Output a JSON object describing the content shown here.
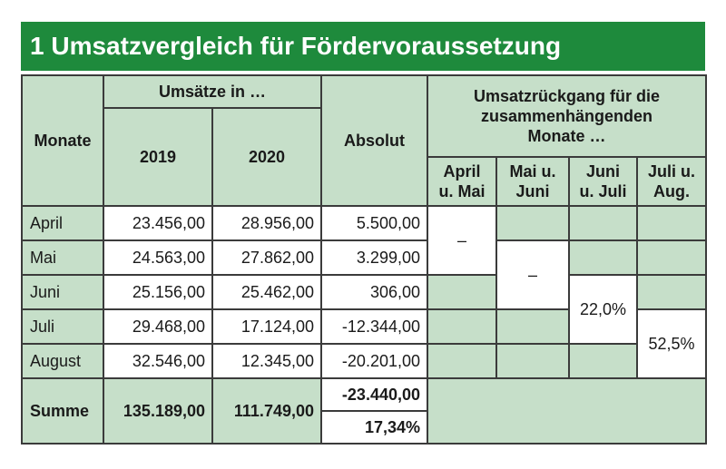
{
  "title": "1 Umsatzvergleich für Fördervoraussetzung",
  "header": {
    "monate": "Monate",
    "umsaetze_in": "Umsätze in …",
    "year_2019": "2019",
    "year_2020": "2020",
    "absolut": "Absolut",
    "rueckgang_line1": "Umsatzrückgang für die",
    "rueckgang_line2": "zusammenhängenden",
    "rueckgang_line3": "Monate …",
    "periods": [
      {
        "line1": "April",
        "line2": "u. Mai"
      },
      {
        "line1": "Mai u.",
        "line2": "Juni"
      },
      {
        "line1": "Juni",
        "line2": "u. Juli"
      },
      {
        "line1": "Juli u.",
        "line2": "Aug."
      }
    ]
  },
  "rows": [
    {
      "month": "April",
      "v2019": "23.456,00",
      "v2020": "28.956,00",
      "absolut": "5.500,00"
    },
    {
      "month": "Mai",
      "v2019": "24.563,00",
      "v2020": "27.862,00",
      "absolut": "3.299,00"
    },
    {
      "month": "Juni",
      "v2019": "25.156,00",
      "v2020": "25.462,00",
      "absolut": "306,00"
    },
    {
      "month": "Juli",
      "v2019": "29.468,00",
      "v2020": "17.124,00",
      "absolut": "-12.344,00"
    },
    {
      "month": "August",
      "v2019": "32.546,00",
      "v2020": "12.345,00",
      "absolut": "-20.201,00"
    }
  ],
  "results": {
    "april_mai": "–",
    "mai_juni": "–",
    "juni_juli": "22,0%",
    "juli_aug": "52,5%"
  },
  "summe": {
    "label": "Summe",
    "v2019": "135.189,00",
    "v2020": "111.749,00",
    "absolut": "-23.440,00",
    "percent": "17,34%"
  },
  "colors": {
    "title_bg": "#1e8a3c",
    "header_bg": "#c6dfc9",
    "border": "#3b3b3b"
  }
}
